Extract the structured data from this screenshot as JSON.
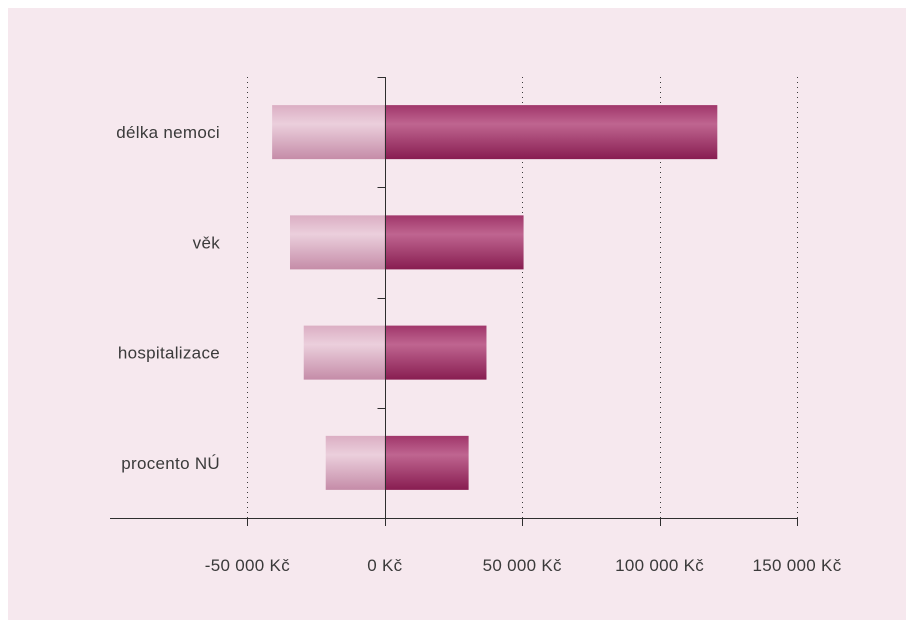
{
  "colors": {
    "page_border": "#ffffff",
    "background": "#f6e8ee",
    "axis": "#2e2e2e",
    "grid": "#3a3a3a",
    "text": "#3a3a3a",
    "negative_bar_top": "#dbaec3",
    "negative_bar_highlight": "#ebcfdc",
    "negative_bar_bottom": "#c58ca8",
    "positive_bar_top": "#a0366a",
    "positive_bar_highlight": "#bf6590",
    "positive_bar_bottom": "#881d51"
  },
  "chart_data": {
    "type": "bar",
    "orientation": "horizontal",
    "categories": [
      "délka nemoci",
      "věk",
      "hospitalizace",
      "procento NÚ"
    ],
    "series": [
      {
        "values": [
          -41000,
          -34500,
          -29500,
          -21500
        ]
      },
      {
        "values": [
          121000,
          50500,
          37000,
          30500
        ]
      }
    ],
    "xticks": [
      -50000,
      0,
      50000,
      100000,
      150000
    ],
    "xtick_labels": [
      "-50 000 Kč",
      "0 Kč",
      "50 000 Kč",
      "100 000 Kč",
      "150 000 Kč"
    ],
    "xlim": [
      -100000,
      150000
    ],
    "grid": true,
    "legend": "none"
  }
}
